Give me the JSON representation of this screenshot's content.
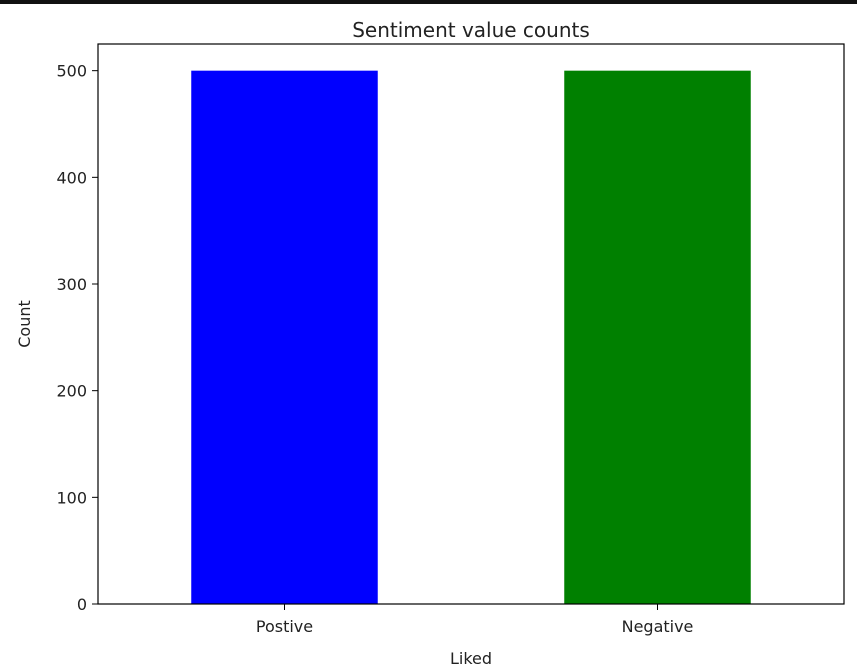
{
  "chart_data": {
    "type": "bar",
    "title": "Sentiment value counts",
    "xlabel": "Liked",
    "ylabel": "Count",
    "categories": [
      "Postive",
      "Negative"
    ],
    "values": [
      500,
      500
    ],
    "colors": [
      "#0000ff",
      "#008000"
    ],
    "ylim": [
      0,
      525
    ],
    "yticks": [
      0,
      100,
      200,
      300,
      400,
      500
    ],
    "grid": false,
    "legend": "none"
  }
}
